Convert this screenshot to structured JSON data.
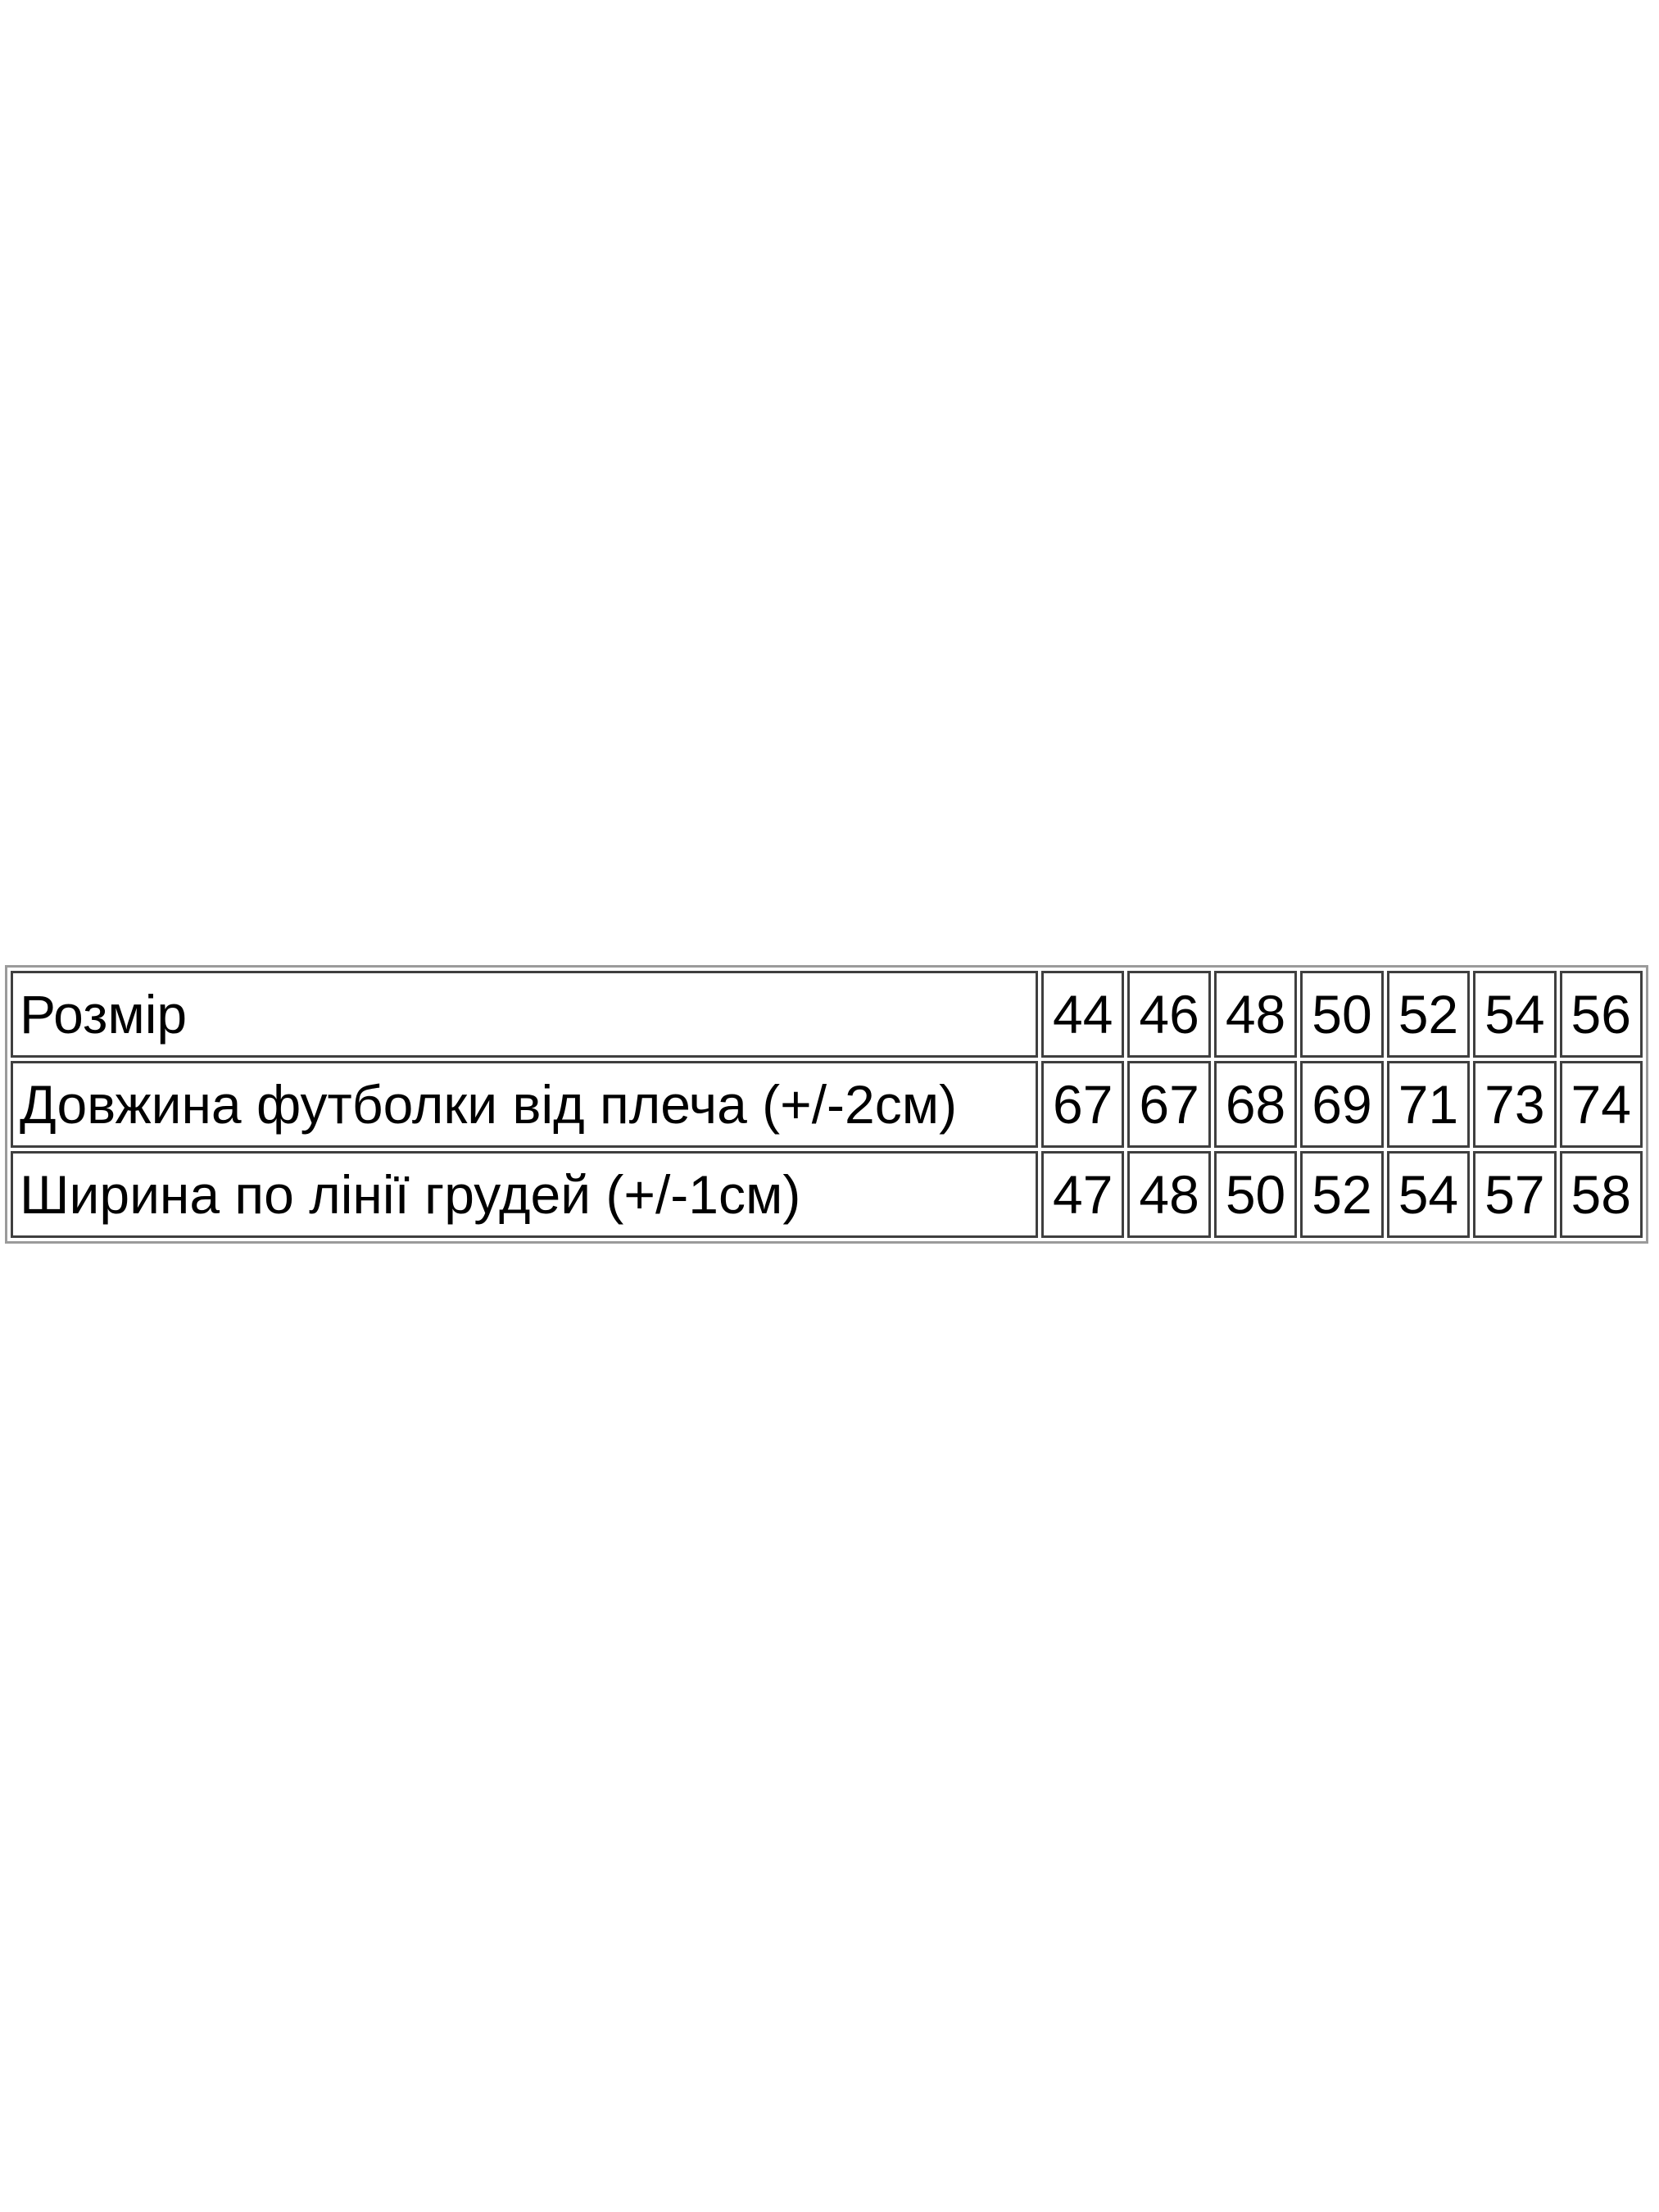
{
  "page": {
    "background_color": "#ffffff"
  },
  "chart_data": {
    "type": "table",
    "language": "uk",
    "layout": {
      "cell_border_color": "#3f3f3f",
      "outer_border_color": "#9b9b9b",
      "text_color": "#000000",
      "background": "#ffffff"
    },
    "rows": [
      {
        "label": "Розмір",
        "values": [
          "44",
          "46",
          "48",
          "50",
          "52",
          "54",
          "56"
        ]
      },
      {
        "label": "Довжина футболки від плеча (+/-2см)",
        "values": [
          "67",
          "67",
          "68",
          "69",
          "71",
          "73",
          "74"
        ]
      },
      {
        "label": "Ширина по лінії грудей (+/-1см)",
        "values": [
          "47",
          "48",
          "50",
          "52",
          "54",
          "57",
          "58"
        ]
      }
    ]
  }
}
